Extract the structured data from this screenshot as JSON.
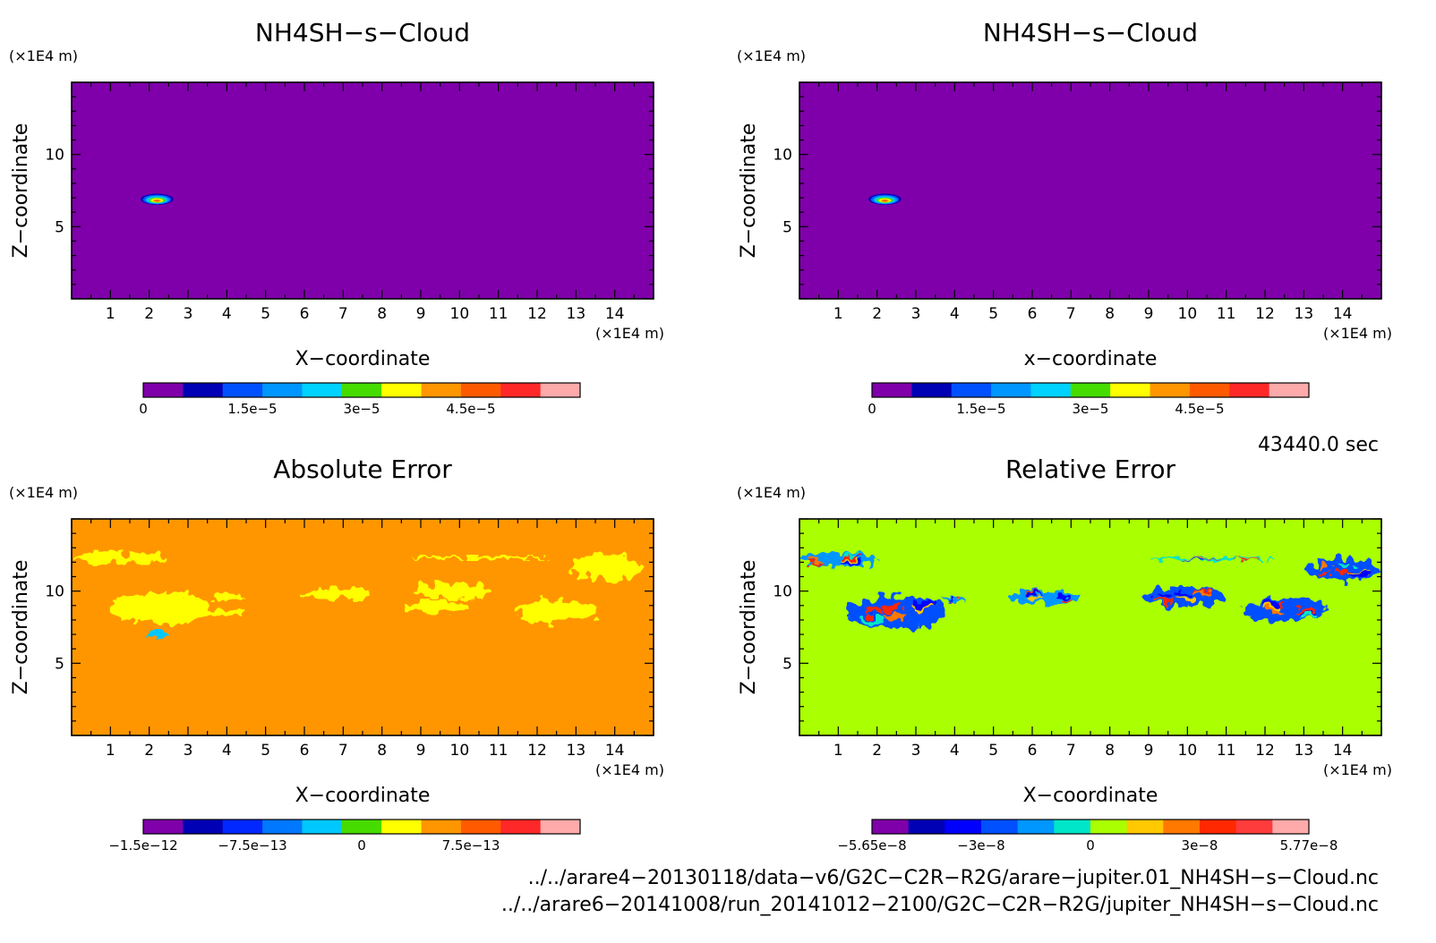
{
  "chart_data": [
    {
      "type": "heatmap",
      "title": "NH4SH−s−Cloud",
      "xlabel": "X−coordinate",
      "ylabel": "Z−coordinate",
      "x_unit": "(×1E4 m)",
      "y_unit": "(×1E4 m)",
      "xlim": [
        0,
        15
      ],
      "ylim": [
        0,
        15
      ],
      "x_ticks": [
        "1",
        "2",
        "3",
        "4",
        "5",
        "6",
        "7",
        "8",
        "9",
        "10",
        "11",
        "12",
        "13",
        "14"
      ],
      "y_ticks": [
        "5",
        "10"
      ],
      "background_color": "#7f00aa",
      "colorbar": {
        "colors": [
          "#7f00aa",
          "#0000b4",
          "#0050ff",
          "#0096ff",
          "#00d2ff",
          "#46dc00",
          "#ffff00",
          "#ff9600",
          "#ff5a00",
          "#ff2828",
          "#ffaaaa"
        ],
        "tick_labels": [
          "0",
          "1.5e−5",
          "3e−5",
          "4.5e−5"
        ]
      },
      "features": [
        {
          "kind": "cloud",
          "x": 2.2,
          "z": 6.9,
          "rx": 0.42,
          "rz": 0.38
        }
      ]
    },
    {
      "type": "heatmap",
      "title": "NH4SH−s−Cloud",
      "xlabel": "x−coordinate",
      "ylabel": "Z−coordinate",
      "x_unit": "(×1E4 m)",
      "y_unit": "(×1E4 m)",
      "xlim": [
        0,
        15
      ],
      "ylim": [
        0,
        15
      ],
      "x_ticks": [
        "1",
        "2",
        "3",
        "4",
        "5",
        "6",
        "7",
        "8",
        "9",
        "10",
        "11",
        "12",
        "13",
        "14"
      ],
      "y_ticks": [
        "5",
        "10"
      ],
      "background_color": "#7f00aa",
      "colorbar": {
        "colors": [
          "#7f00aa",
          "#0000b4",
          "#0050ff",
          "#0096ff",
          "#00d2ff",
          "#46dc00",
          "#ffff00",
          "#ff9600",
          "#ff5a00",
          "#ff2828",
          "#ffaaaa"
        ],
        "tick_labels": [
          "0",
          "1.5e−5",
          "3e−5",
          "4.5e−5"
        ]
      },
      "features": [
        {
          "kind": "cloud",
          "x": 2.2,
          "z": 6.9,
          "rx": 0.42,
          "rz": 0.38
        }
      ]
    },
    {
      "type": "heatmap",
      "title": "Absolute Error",
      "xlabel": "X−coordinate",
      "ylabel": "Z−coordinate",
      "x_unit": "(×1E4 m)",
      "y_unit": "(×1E4 m)",
      "xlim": [
        0,
        15
      ],
      "ylim": [
        0,
        15
      ],
      "x_ticks": [
        "1",
        "2",
        "3",
        "4",
        "5",
        "6",
        "7",
        "8",
        "9",
        "10",
        "11",
        "12",
        "13",
        "14"
      ],
      "y_ticks": [
        "5",
        "10"
      ],
      "background_color": "#ff9600",
      "colorbar": {
        "colors": [
          "#7f00aa",
          "#0000b4",
          "#0028ff",
          "#0078ff",
          "#00c8ff",
          "#46dc00",
          "#ffff00",
          "#ff9600",
          "#ff5a00",
          "#ff2828",
          "#ffaaaa"
        ],
        "tick_labels": [
          "−1.5e−12",
          "−7.5e−13",
          "0",
          "7.5e−13"
        ]
      },
      "patches": [
        {
          "x": 0.8,
          "z": 12.3,
          "rx": 0.7,
          "rz": 0.4,
          "color": "#ffff00"
        },
        {
          "x": 2.0,
          "z": 12.3,
          "rx": 0.5,
          "rz": 0.35,
          "color": "#ffff00"
        },
        {
          "x": 2.3,
          "z": 8.8,
          "rx": 1.3,
          "rz": 1.1,
          "color": "#ffff00"
        },
        {
          "x": 3.8,
          "z": 8.6,
          "rx": 0.6,
          "rz": 0.3,
          "color": "#ffff00"
        },
        {
          "x": 4.0,
          "z": 9.6,
          "rx": 0.4,
          "rz": 0.25,
          "color": "#ffff00"
        },
        {
          "x": 6.8,
          "z": 9.8,
          "rx": 0.9,
          "rz": 0.4,
          "color": "#ffff00"
        },
        {
          "x": 9.8,
          "z": 10.0,
          "rx": 0.9,
          "rz": 0.6,
          "color": "#ffff00"
        },
        {
          "x": 9.4,
          "z": 8.9,
          "rx": 0.9,
          "rz": 0.4,
          "color": "#ffff00"
        },
        {
          "x": 12.5,
          "z": 8.6,
          "rx": 1.1,
          "rz": 0.8,
          "color": "#ffff00"
        },
        {
          "x": 13.8,
          "z": 11.7,
          "rx": 0.9,
          "rz": 0.9,
          "color": "#ffff00"
        },
        {
          "x": 10.5,
          "z": 12.3,
          "rx": 1.8,
          "rz": 0.15,
          "color": "#ffff00"
        },
        {
          "x": 2.2,
          "z": 7.0,
          "rx": 0.3,
          "rz": 0.25,
          "color": "#00c8ff"
        }
      ]
    },
    {
      "type": "heatmap",
      "title": "Relative Error",
      "xlabel": "X−coordinate",
      "ylabel": "Z−coordinate",
      "x_unit": "(×1E4 m)",
      "y_unit": "(×1E4 m)",
      "xlim": [
        0,
        15
      ],
      "ylim": [
        0,
        15
      ],
      "x_ticks": [
        "1",
        "2",
        "3",
        "4",
        "5",
        "6",
        "7",
        "8",
        "9",
        "10",
        "11",
        "12",
        "13",
        "14"
      ],
      "y_ticks": [
        "5",
        "10"
      ],
      "background_color": "#aaff00",
      "colorbar": {
        "colors": [
          "#7f00aa",
          "#0000b4",
          "#0000ff",
          "#0050ff",
          "#0096ff",
          "#00e6c8",
          "#aaff00",
          "#ffc800",
          "#ff7800",
          "#ff2800",
          "#ff3c3c",
          "#ffaaaa"
        ],
        "tick_labels": [
          "−5.65e−8",
          "−3e−8",
          "0",
          "3e−8",
          "5.77e−8"
        ]
      },
      "patches": [
        {
          "x": 1.0,
          "z": 12.2,
          "rx": 1.0,
          "rz": 0.5,
          "color": "#0096ff"
        },
        {
          "x": 2.5,
          "z": 8.5,
          "rx": 1.3,
          "rz": 1.1,
          "color": "#0050ff"
        },
        {
          "x": 6.3,
          "z": 9.6,
          "rx": 0.9,
          "rz": 0.5,
          "color": "#0096ff"
        },
        {
          "x": 9.9,
          "z": 9.6,
          "rx": 1.1,
          "rz": 0.7,
          "color": "#0050ff"
        },
        {
          "x": 12.5,
          "z": 8.7,
          "rx": 1.1,
          "rz": 0.8,
          "color": "#0050ff"
        },
        {
          "x": 14.0,
          "z": 11.5,
          "rx": 0.9,
          "rz": 0.8,
          "color": "#0050ff"
        },
        {
          "x": 4.0,
          "z": 9.4,
          "rx": 0.3,
          "rz": 0.2,
          "color": "#0096ff"
        },
        {
          "x": 10.7,
          "z": 12.2,
          "rx": 1.6,
          "rz": 0.15,
          "color": "#00e6c8"
        }
      ]
    }
  ],
  "timestamp": "43440.0 sec",
  "file_paths": [
    "../../arare4−20130118/data−v6/G2C−C2R−R2G/arare−jupiter.01_NH4SH−s−Cloud.nc",
    "../../arare6−20141008/run_20141012−2100/G2C−C2R−R2G/jupiter_NH4SH−s−Cloud.nc"
  ]
}
